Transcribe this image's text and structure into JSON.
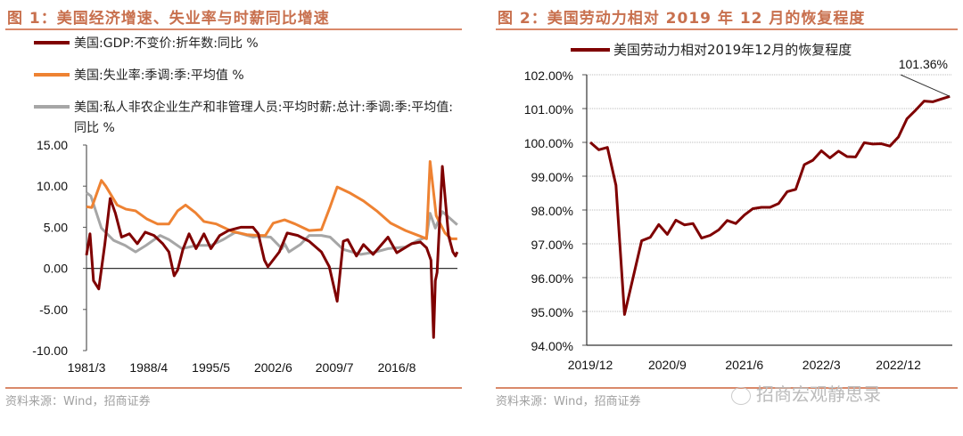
{
  "fig1": {
    "title": "图 1：美国经济增速、失业率与时薪同比增速",
    "source": "资料来源：Wind，招商证券"
  },
  "fig2": {
    "title": "图 2：美国劳动力相对 2019 年 12 月的恢复程度",
    "source": "资料来源：Wind，招商证券"
  },
  "watermark": "招商宏观静思录",
  "colors": {
    "gdp": "#7f0000",
    "unemp": "#ee8232",
    "wage": "#a6a6a6",
    "title": "#c8704e"
  },
  "chart_data": [
    {
      "type": "line",
      "title": "美国经济增速、失业率与时薪同比增速",
      "xlabel": "",
      "ylabel": "",
      "ylim": [
        -10,
        15
      ],
      "yticks": [
        "15.00",
        "10.00",
        "5.00",
        "0.00",
        "-5.00",
        "-10.00"
      ],
      "ytick_values": [
        15,
        10,
        5,
        0,
        -5,
        -10
      ],
      "xticks": [
        "1981/3",
        "1988/4",
        "1995/5",
        "2002/6",
        "2009/7",
        "2016/8"
      ],
      "xtick_values": [
        1981.2,
        1988.3,
        1995.4,
        2002.5,
        2009.5,
        2016.6
      ],
      "xlim": [
        1981.2,
        2023.5
      ],
      "legend": "top-left",
      "series": [
        {
          "name": "美国:GDP:不变价:折年数:同比 %",
          "color": "#7f0000",
          "points": [
            [
              1981.2,
              1.6
            ],
            [
              1981.6,
              4.2
            ],
            [
              1982.0,
              -1.5
            ],
            [
              1982.3,
              -2.0
            ],
            [
              1982.6,
              -2.5
            ],
            [
              1983.3,
              3.0
            ],
            [
              1983.9,
              8.5
            ],
            [
              1984.5,
              6.7
            ],
            [
              1985.2,
              3.8
            ],
            [
              1986.1,
              4.2
            ],
            [
              1987.0,
              3.0
            ],
            [
              1987.9,
              4.4
            ],
            [
              1988.9,
              4.0
            ],
            [
              1989.9,
              3.0
            ],
            [
              1990.6,
              2.0
            ],
            [
              1991.2,
              -0.9
            ],
            [
              1991.6,
              -0.2
            ],
            [
              1992.2,
              2.3
            ],
            [
              1992.9,
              4.2
            ],
            [
              1993.7,
              2.4
            ],
            [
              1994.6,
              4.2
            ],
            [
              1995.4,
              2.4
            ],
            [
              1996.4,
              4.0
            ],
            [
              1997.4,
              4.6
            ],
            [
              1998.8,
              5.0
            ],
            [
              2000.2,
              5.0
            ],
            [
              2000.8,
              4.2
            ],
            [
              2001.5,
              1.0
            ],
            [
              2001.9,
              0.2
            ],
            [
              2003.2,
              2.0
            ],
            [
              2004.1,
              4.3
            ],
            [
              2005.3,
              4.0
            ],
            [
              2006.6,
              3.3
            ],
            [
              2008.0,
              2.0
            ],
            [
              2008.9,
              0.2
            ],
            [
              2009.8,
              -4.0
            ],
            [
              2010.5,
              3.3
            ],
            [
              2011.0,
              3.5
            ],
            [
              2012.0,
              1.5
            ],
            [
              2012.8,
              2.9
            ],
            [
              2013.9,
              1.7
            ],
            [
              2015.6,
              3.8
            ],
            [
              2016.6,
              1.9
            ],
            [
              2018.3,
              3.0
            ],
            [
              2019.3,
              3.2
            ],
            [
              2020.0,
              2.5
            ],
            [
              2020.5,
              1.0
            ],
            [
              2020.8,
              -8.4
            ],
            [
              2021.0,
              -1.5
            ],
            [
              2021.2,
              -0.5
            ],
            [
              2021.8,
              12.4
            ],
            [
              2022.5,
              4.0
            ],
            [
              2023.0,
              2.0
            ],
            [
              2023.3,
              1.5
            ],
            [
              2023.5,
              2.0
            ]
          ]
        },
        {
          "name": "美国:失业率:季调:季:平均值 %",
          "color": "#ee8232",
          "points": [
            [
              1981.2,
              7.5
            ],
            [
              1981.8,
              7.4
            ],
            [
              1982.9,
              10.7
            ],
            [
              1983.4,
              10.0
            ],
            [
              1984.7,
              7.7
            ],
            [
              1985.7,
              7.2
            ],
            [
              1986.8,
              7.0
            ],
            [
              1988.1,
              6.0
            ],
            [
              1989.3,
              5.4
            ],
            [
              1990.6,
              5.4
            ],
            [
              1991.6,
              7.0
            ],
            [
              1992.5,
              7.7
            ],
            [
              1993.6,
              6.8
            ],
            [
              1994.6,
              5.7
            ],
            [
              1996.0,
              5.4
            ],
            [
              1997.8,
              4.5
            ],
            [
              1999.5,
              4.1
            ],
            [
              2000.8,
              4.0
            ],
            [
              2001.6,
              4.0
            ],
            [
              2002.5,
              5.5
            ],
            [
              2003.8,
              5.9
            ],
            [
              2005.0,
              5.4
            ],
            [
              2006.6,
              4.6
            ],
            [
              2008.0,
              4.7
            ],
            [
              2009.0,
              7.5
            ],
            [
              2009.8,
              9.9
            ],
            [
              2011.2,
              9.2
            ],
            [
              2012.8,
              8.2
            ],
            [
              2014.3,
              7.0
            ],
            [
              2015.9,
              5.5
            ],
            [
              2017.6,
              4.6
            ],
            [
              2019.3,
              3.9
            ],
            [
              2020.0,
              3.6
            ],
            [
              2020.4,
              13.0
            ],
            [
              2021.1,
              6.4
            ],
            [
              2022.1,
              4.3
            ],
            [
              2022.8,
              3.6
            ],
            [
              2023.5,
              3.6
            ]
          ]
        },
        {
          "name": "美国:私人非农企业生产和非管理人员:平均时薪:总计:季调:季:平均值:同比 %",
          "color": "#a6a6a6",
          "points": [
            [
              1981.2,
              9.2
            ],
            [
              1981.7,
              8.8
            ],
            [
              1982.9,
              4.9
            ],
            [
              1984.3,
              3.4
            ],
            [
              1985.6,
              2.8
            ],
            [
              1986.8,
              2.0
            ],
            [
              1988.0,
              2.8
            ],
            [
              1989.6,
              4.0
            ],
            [
              1990.6,
              3.5
            ],
            [
              1992.1,
              2.4
            ],
            [
              1993.8,
              2.8
            ],
            [
              1995.4,
              2.8
            ],
            [
              1996.8,
              3.5
            ],
            [
              1998.2,
              4.4
            ],
            [
              2000.2,
              3.8
            ],
            [
              2000.8,
              3.9
            ],
            [
              2002.2,
              3.8
            ],
            [
              2003.5,
              2.4
            ],
            [
              2003.8,
              3.0
            ],
            [
              2004.3,
              2.0
            ],
            [
              2005.6,
              2.9
            ],
            [
              2006.6,
              4.0
            ],
            [
              2008.0,
              4.0
            ],
            [
              2009.0,
              3.8
            ],
            [
              2010.5,
              2.3
            ],
            [
              2012.5,
              1.7
            ],
            [
              2014.2,
              2.0
            ],
            [
              2015.6,
              2.4
            ],
            [
              2017.6,
              2.6
            ],
            [
              2019.0,
              3.4
            ],
            [
              2020.0,
              3.8
            ],
            [
              2020.4,
              6.7
            ],
            [
              2021.0,
              4.9
            ],
            [
              2021.8,
              6.9
            ],
            [
              2023.5,
              5.3
            ]
          ]
        }
      ]
    },
    {
      "type": "line",
      "title": "美国劳动力相对2019年12月的恢复程度",
      "xlabel": "",
      "ylabel": "",
      "ylim": [
        94,
        102
      ],
      "yticks": [
        "102.00%",
        "101.00%",
        "100.00%",
        "99.00%",
        "98.00%",
        "97.00%",
        "96.00%",
        "95.00%",
        "94.00%"
      ],
      "ytick_values": [
        102,
        101,
        100,
        99,
        98,
        97,
        96,
        95,
        94
      ],
      "xticks": [
        "2019/12",
        "2020/9",
        "2021/6",
        "2022/3",
        "2022/12"
      ],
      "xtick_months": [
        0,
        9,
        18,
        27,
        36
      ],
      "legend": "top",
      "annotation": "101.36%",
      "series": [
        {
          "name": "美国劳动力相对2019年12月的恢复程度",
          "color": "#7f0000",
          "start": "2019/12",
          "frequency": "monthly",
          "values": [
            100.0,
            99.78,
            99.85,
            98.73,
            94.91,
            96.0,
            97.09,
            97.19,
            97.57,
            97.28,
            97.7,
            97.56,
            97.6,
            97.17,
            97.25,
            97.41,
            97.69,
            97.6,
            97.85,
            98.04,
            98.08,
            98.08,
            98.19,
            98.54,
            98.61,
            99.34,
            99.47,
            99.75,
            99.54,
            99.74,
            99.58,
            99.57,
            99.99,
            99.95,
            99.96,
            99.89,
            100.16,
            100.7,
            100.95,
            101.22,
            101.2,
            101.28,
            101.36
          ]
        }
      ]
    }
  ]
}
